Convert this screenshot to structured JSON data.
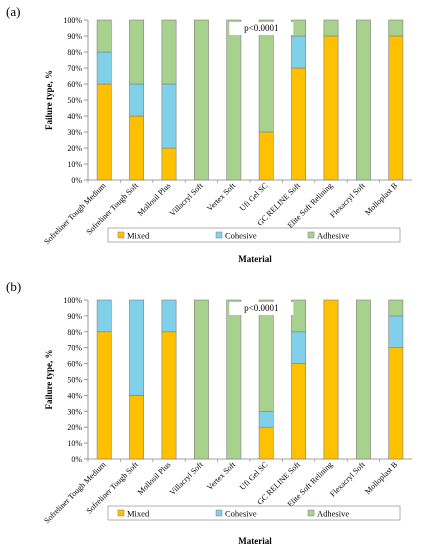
{
  "chart_data": [
    {
      "panel_label": "(a)",
      "type": "bar",
      "stacked": true,
      "annotation": "p<0.0001",
      "xlabel": "Material",
      "ylabel": "Failure type, %",
      "ylim": [
        0,
        100
      ],
      "yticks": [
        "0%",
        "10%",
        "20%",
        "30%",
        "40%",
        "50%",
        "60%",
        "70%",
        "80%",
        "90%",
        "100%"
      ],
      "categories": [
        "Sofreliner Tough Medium",
        "Sofreliner Tough Soft",
        "Mollosil Plus",
        "Villacryl Soft",
        "Vertex Soft",
        "Ufi Gel SC",
        "GC RELINE Soft",
        "Elite Soft Relining",
        "Flexacryl Soft",
        "Molloplast B"
      ],
      "legend_position": "bottom",
      "series": [
        {
          "name": "Mixed",
          "values": [
            60,
            40,
            20,
            0,
            0,
            30,
            70,
            90,
            0,
            90
          ]
        },
        {
          "name": "Cohesive",
          "values": [
            20,
            20,
            40,
            0,
            0,
            0,
            20,
            0,
            0,
            0
          ]
        },
        {
          "name": "Adhesive",
          "values": [
            20,
            40,
            40,
            100,
            100,
            70,
            10,
            10,
            100,
            10
          ]
        }
      ]
    },
    {
      "panel_label": "(b)",
      "type": "bar",
      "stacked": true,
      "annotation": "p<0.0001",
      "xlabel": "Material",
      "ylabel": "Failure type, %",
      "ylim": [
        0,
        100
      ],
      "yticks": [
        "0%",
        "10%",
        "20%",
        "30%",
        "40%",
        "50%",
        "60%",
        "70%",
        "80%",
        "90%",
        "100%"
      ],
      "categories": [
        "Sofreliner Tough Medium",
        "Sofreliner Tough Soft",
        "Mollosil Plus",
        "Villacryl Soft",
        "Vertex Soft",
        "Ufi Gel SC",
        "GC RELINE Soft",
        "Elite Soft Relining",
        "Flexacryl Soft",
        "Molloplast B"
      ],
      "legend_position": "bottom",
      "series": [
        {
          "name": "Mixed",
          "values": [
            80,
            40,
            80,
            0,
            0,
            20,
            60,
            100,
            0,
            70
          ]
        },
        {
          "name": "Cohesive",
          "values": [
            20,
            60,
            20,
            0,
            0,
            10,
            20,
            0,
            0,
            20
          ]
        },
        {
          "name": "Adhesive",
          "values": [
            0,
            0,
            0,
            100,
            100,
            70,
            20,
            0,
            100,
            10
          ]
        }
      ]
    }
  ],
  "colors": {
    "Mixed": "#FFC000",
    "Cohesive": "#7FD0E8",
    "Adhesive": "#A9D18E",
    "bar_stroke": "#7f7f7f",
    "axis": "#808080"
  }
}
